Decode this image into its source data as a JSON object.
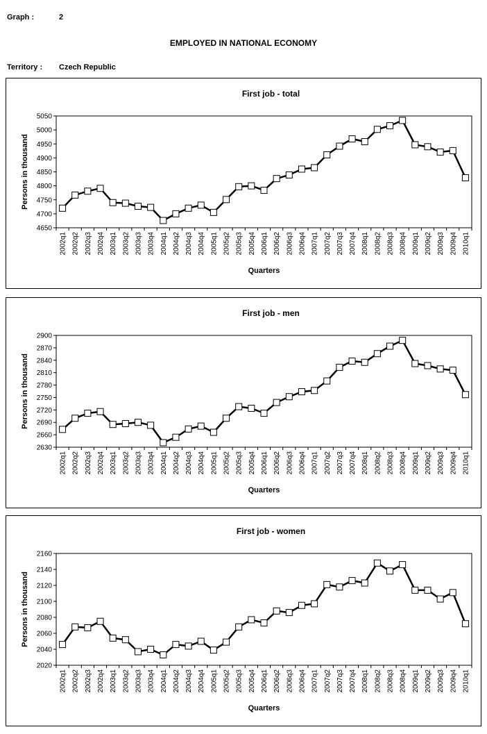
{
  "header": {
    "graph_label": "Graph :",
    "graph_number": "2",
    "main_title": "EMPLOYED IN NATIONAL ECONOMY",
    "territory_label": "Territory :",
    "territory_value": "Czech Republic"
  },
  "chart_data": [
    {
      "type": "line",
      "title": "First job - total",
      "xlabel": "Quarters",
      "ylabel": "Persons in thousand",
      "ylim": [
        4650,
        5050
      ],
      "yticks": [
        4650,
        4700,
        4750,
        4800,
        4850,
        4900,
        4950,
        5000,
        5050
      ],
      "grid": false,
      "categories": [
        "2002q1",
        "2002q2",
        "2002q3",
        "2002q4",
        "2003q1",
        "2003q2",
        "2003q3",
        "2003q4",
        "2004q1",
        "2004q2",
        "2004q3",
        "2004q4",
        "2005q1",
        "2005q2",
        "2005q3",
        "2005q4",
        "2006q1",
        "2006q2",
        "2006q3",
        "2006q4",
        "2007q1",
        "2007q2",
        "2007q3",
        "2007q4",
        "2008q1",
        "2008q2",
        "2008q3",
        "2008q4",
        "2009q1",
        "2009q2",
        "2009q3",
        "2009q4",
        "2010q1"
      ],
      "values": [
        4720,
        4767,
        4781,
        4791,
        4740,
        4738,
        4727,
        4723,
        4676,
        4700,
        4720,
        4731,
        4705,
        4751,
        4797,
        4800,
        4784,
        4826,
        4839,
        4860,
        4865,
        4911,
        4942,
        4968,
        4958,
        5002,
        5015,
        5034,
        4947,
        4940,
        4921,
        4926,
        4829
      ]
    },
    {
      "type": "line",
      "title": "First job - men",
      "xlabel": "Quarters",
      "ylabel": "Persons in thousand",
      "ylim": [
        2630,
        2900
      ],
      "yticks": [
        2630,
        2660,
        2690,
        2720,
        2750,
        2780,
        2810,
        2840,
        2870,
        2900
      ],
      "grid": false,
      "categories": [
        "2002q1",
        "2002q2",
        "2002q3",
        "2002q4",
        "2003q1",
        "2003q2",
        "2003q3",
        "2003q4",
        "2004q1",
        "2004q2",
        "2004q3",
        "2004q4",
        "2005q1",
        "2005q2",
        "2005q3",
        "2005q4",
        "2006q1",
        "2006q2",
        "2006q3",
        "2006q4",
        "2007q1",
        "2007q2",
        "2007q3",
        "2007q4",
        "2008q1",
        "2008q2",
        "2008q3",
        "2008q4",
        "2009q1",
        "2009q2",
        "2009q3",
        "2009q4",
        "2010q1"
      ],
      "values": [
        2673,
        2700,
        2712,
        2716,
        2685,
        2687,
        2690,
        2683,
        2641,
        2654,
        2674,
        2681,
        2666,
        2700,
        2728,
        2724,
        2712,
        2738,
        2752,
        2764,
        2767,
        2790,
        2823,
        2838,
        2835,
        2856,
        2874,
        2888,
        2832,
        2827,
        2819,
        2816,
        2757
      ]
    },
    {
      "type": "line",
      "title": "First job - women",
      "xlabel": "Quarters",
      "ylabel": "Persons in thousand",
      "ylim": [
        2020,
        2160
      ],
      "yticks": [
        2020,
        2040,
        2060,
        2080,
        2100,
        2120,
        2140,
        2160
      ],
      "grid": false,
      "categories": [
        "2002q1",
        "2002q2",
        "2002q3",
        "2002q4",
        "2003q1",
        "2003q2",
        "2003q3",
        "2003q4",
        "2004q1",
        "2004q2",
        "2004q3",
        "2004q4",
        "2005q1",
        "2005q2",
        "2005q3",
        "2005q4",
        "2006q1",
        "2006q2",
        "2006q3",
        "2006q4",
        "2007q1",
        "2007q2",
        "2007q3",
        "2007q4",
        "2008q1",
        "2008q2",
        "2008q3",
        "2008q4",
        "2009q1",
        "2009q2",
        "2009q3",
        "2009q4",
        "2010q1"
      ],
      "values": [
        2046,
        2068,
        2067,
        2075,
        2054,
        2052,
        2037,
        2040,
        2033,
        2046,
        2044,
        2050,
        2039,
        2049,
        2068,
        2077,
        2073,
        2088,
        2086,
        2095,
        2097,
        2121,
        2118,
        2126,
        2123,
        2148,
        2138,
        2146,
        2114,
        2114,
        2103,
        2111,
        2072
      ]
    }
  ]
}
